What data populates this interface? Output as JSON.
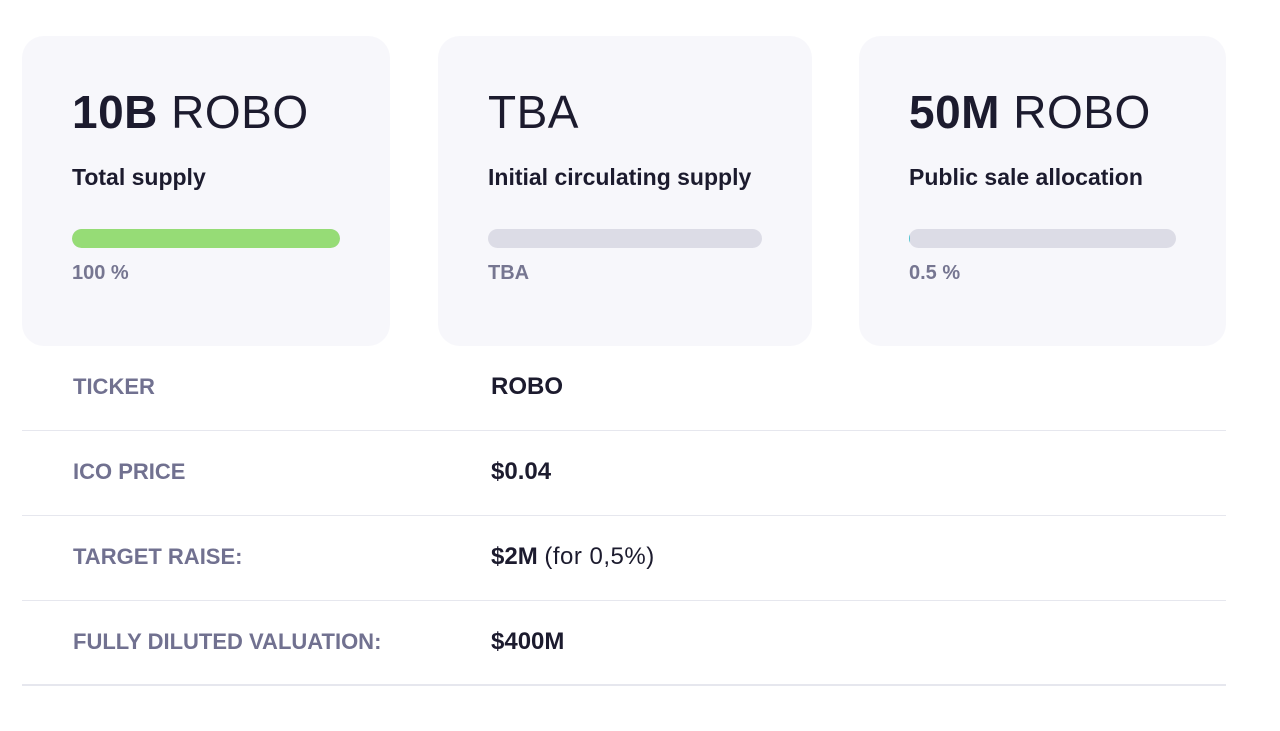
{
  "cards": [
    {
      "amount": "10B",
      "unit": "ROBO",
      "label": "Total supply",
      "progress_percent": 100,
      "progress_text": "100 %"
    },
    {
      "amount": "",
      "unit": "TBA",
      "label": "Initial circulating supply",
      "progress_percent": 0,
      "progress_text": "TBA"
    },
    {
      "amount": "50M",
      "unit": "ROBO",
      "label": "Public sale allocation",
      "progress_percent": 0.5,
      "progress_text": "0.5 %"
    }
  ],
  "details": [
    {
      "key": "TICKER",
      "value": "ROBO",
      "note": ""
    },
    {
      "key": "ICO PRICE",
      "value": "$0.04",
      "note": ""
    },
    {
      "key": "TARGET RAISE:",
      "value": "$2M",
      "note": "(for 0,5%)"
    },
    {
      "key": "FULLY DILUTED VALUATION:",
      "value": "$400M",
      "note": ""
    }
  ],
  "colors": {
    "card_background": "#f7f7fb",
    "progress_track": "#dcdce6",
    "progress_fill": "#96dc76",
    "progress_fill_small": "#4ec3d0",
    "label_muted": "#717190",
    "text_dark": "#1c1b2e"
  }
}
